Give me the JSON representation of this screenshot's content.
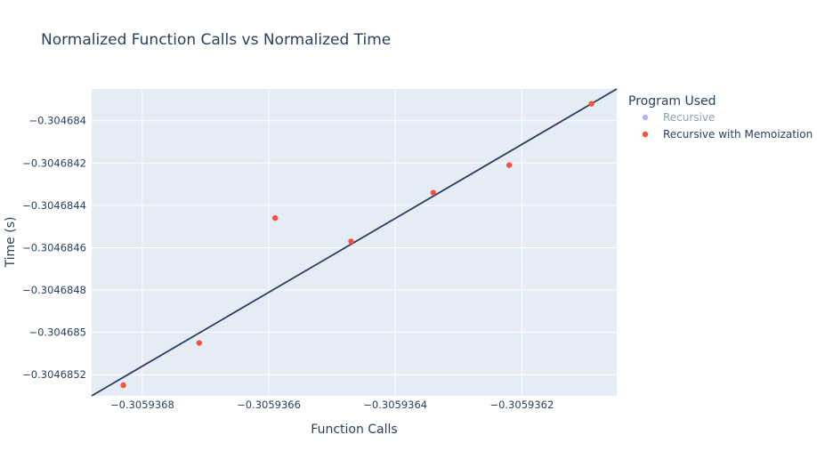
{
  "chart_data": {
    "type": "scatter",
    "title": "Normalized Function Calls vs Normalized Time",
    "xlabel": "Function Calls",
    "ylabel": "Time (s)",
    "xlim": [
      -0.30593688,
      -0.30593605
    ],
    "ylim": [
      -0.3046853,
      -0.30468385
    ],
    "x_ticks": [
      -0.3059368,
      -0.3059366,
      -0.3059364,
      -0.3059362
    ],
    "x_tick_labels": [
      "−0.3059368",
      "−0.3059366",
      "−0.3059364",
      "−0.3059362"
    ],
    "y_ticks": [
      -0.3046852,
      -0.304685,
      -0.3046848,
      -0.3046846,
      -0.3046844,
      -0.3046842,
      -0.304684
    ],
    "y_tick_labels": [
      "−0.3046852",
      "−0.304685",
      "−0.3046848",
      "−0.3046846",
      "−0.3046844",
      "−0.3046842",
      "−0.304684"
    ],
    "grid": true,
    "legend": {
      "title": "Program Used",
      "placement": "right",
      "entries": [
        {
          "name": "Recursive",
          "color": "#636efa",
          "hidden": true
        },
        {
          "name": "Recursive with Memoization",
          "color": "#ef553b",
          "hidden": false
        }
      ]
    },
    "series": [
      {
        "name": "Recursive with Memoization",
        "color": "#ef553b",
        "points": [
          {
            "x": -0.30593683,
            "y": -0.30468525
          },
          {
            "x": -0.30593671,
            "y": -0.30468505
          },
          {
            "x": -0.30593659,
            "y": -0.30468446
          },
          {
            "x": -0.30593647,
            "y": -0.30468457
          },
          {
            "x": -0.30593634,
            "y": -0.30468434
          },
          {
            "x": -0.30593622,
            "y": -0.30468421
          },
          {
            "x": -0.30593609,
            "y": -0.30468392
          }
        ]
      }
    ],
    "trendline": {
      "color": "#2a3f5f",
      "points": [
        {
          "x": -0.30593688,
          "y": -0.3046853
        },
        {
          "x": -0.30593605,
          "y": -0.30468385
        }
      ]
    }
  }
}
